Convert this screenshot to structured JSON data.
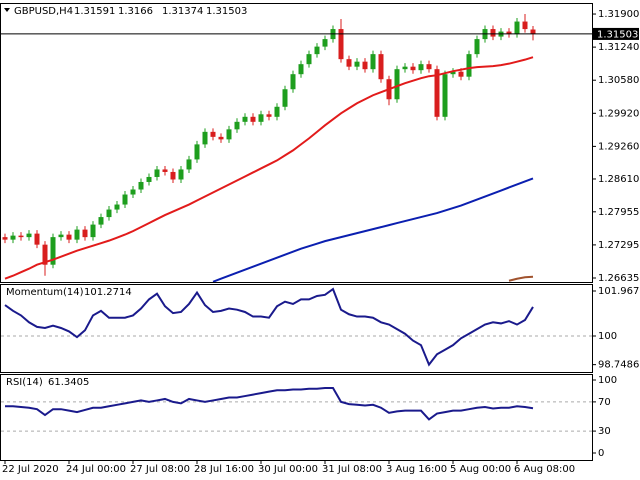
{
  "chart_data": [
    {
      "type": "candlestick",
      "title": "GBPUSD,H4",
      "categories": [
        "22 Jul 2020",
        null,
        null,
        null,
        null,
        null,
        null,
        null,
        "24 Jul 00:00",
        null,
        null,
        null,
        null,
        null,
        null,
        null,
        "27 Jul 08:00",
        null,
        null,
        null,
        null,
        null,
        null,
        null,
        "28 Jul 16:00",
        null,
        null,
        null,
        null,
        null,
        null,
        null,
        "30 Jul 00:00",
        null,
        null,
        null,
        null,
        null,
        null,
        null,
        "31 Jul 08:00",
        null,
        null,
        null,
        null,
        null,
        null,
        null,
        "3 Aug 16:00",
        null,
        null,
        null,
        null,
        null,
        null,
        null,
        "5 Aug 00:00",
        null,
        null,
        null,
        null,
        null,
        null,
        null,
        "6 Aug 08:00",
        null,
        null
      ],
      "open": [
        1.2745,
        1.274,
        1.2748,
        1.2745,
        1.2752,
        1.273,
        1.269,
        1.2745,
        1.275,
        1.274,
        1.276,
        1.2745,
        1.277,
        1.2785,
        1.28,
        1.281,
        1.283,
        1.284,
        1.2855,
        1.2865,
        1.288,
        1.2875,
        1.286,
        1.288,
        1.29,
        1.293,
        1.2955,
        1.2945,
        1.294,
        1.296,
        1.2975,
        1.2985,
        1.2975,
        1.299,
        1.2985,
        1.3005,
        1.304,
        1.307,
        1.309,
        1.311,
        1.3125,
        1.314,
        1.316,
        1.31,
        1.3085,
        1.3095,
        1.308,
        1.311,
        1.306,
        1.302,
        1.308,
        1.3085,
        1.3078,
        1.309,
        1.308,
        1.2985,
        1.307,
        1.3075,
        1.3065,
        1.311,
        1.314,
        1.316,
        1.3145,
        1.3155,
        1.315,
        1.3175,
        1.31591
      ],
      "high": [
        1.2752,
        1.2755,
        1.2755,
        1.2759,
        1.2759,
        1.2737,
        1.2752,
        1.2757,
        1.2757,
        1.2767,
        1.2767,
        1.2777,
        1.2792,
        1.2807,
        1.2817,
        1.2837,
        1.2847,
        1.2862,
        1.2872,
        1.2887,
        1.2887,
        1.2882,
        1.2887,
        1.2907,
        1.2937,
        1.2962,
        1.2962,
        1.2952,
        1.2967,
        1.2982,
        1.2992,
        1.2992,
        1.2997,
        1.2997,
        1.3012,
        1.3047,
        1.3077,
        1.3097,
        1.3117,
        1.3132,
        1.3147,
        1.3167,
        1.318,
        1.3107,
        1.3102,
        1.3102,
        1.3117,
        1.3117,
        1.3067,
        1.3087,
        1.3092,
        1.3092,
        1.3097,
        1.3097,
        1.3087,
        1.3077,
        1.3082,
        1.3082,
        1.3117,
        1.3147,
        1.3167,
        1.3167,
        1.3162,
        1.3162,
        1.3182,
        1.319,
        1.3166
      ],
      "low": [
        1.2733,
        1.2733,
        1.2738,
        1.2738,
        1.2723,
        1.2668,
        1.2683,
        1.2738,
        1.2733,
        1.2733,
        1.2738,
        1.2738,
        1.2763,
        1.2778,
        1.2793,
        1.2803,
        1.2823,
        1.2833,
        1.2848,
        1.2858,
        1.2868,
        1.2853,
        1.2853,
        1.2873,
        1.2893,
        1.2923,
        1.2938,
        1.2933,
        1.2933,
        1.2953,
        1.2968,
        1.2968,
        1.2968,
        1.2978,
        1.2978,
        1.2998,
        1.3033,
        1.3063,
        1.3083,
        1.3103,
        1.3118,
        1.3133,
        1.3093,
        1.3078,
        1.3078,
        1.3073,
        1.3073,
        1.3053,
        1.3008,
        1.3013,
        1.3073,
        1.3071,
        1.3071,
        1.3073,
        1.2978,
        1.2978,
        1.3063,
        1.3058,
        1.3058,
        1.3103,
        1.3133,
        1.3138,
        1.3138,
        1.3143,
        1.3143,
        1.3153,
        1.31374
      ],
      "close": [
        1.274,
        1.2748,
        1.2745,
        1.2752,
        1.273,
        1.269,
        1.2745,
        1.275,
        1.274,
        1.276,
        1.2745,
        1.277,
        1.2785,
        1.28,
        1.281,
        1.283,
        1.284,
        1.2855,
        1.2865,
        1.288,
        1.2875,
        1.286,
        1.288,
        1.29,
        1.293,
        1.2955,
        1.2945,
        1.294,
        1.296,
        1.2975,
        1.2985,
        1.2975,
        1.299,
        1.2985,
        1.3005,
        1.304,
        1.307,
        1.309,
        1.311,
        1.3125,
        1.314,
        1.316,
        1.31,
        1.3085,
        1.3095,
        1.308,
        1.311,
        1.306,
        1.302,
        1.308,
        1.3085,
        1.3078,
        1.309,
        1.308,
        1.2985,
        1.307,
        1.3075,
        1.3065,
        1.311,
        1.314,
        1.316,
        1.3145,
        1.3155,
        1.315,
        1.3175,
        1.316,
        1.31503
      ],
      "up_color": "#1e9e1e",
      "down_color": "#d81e1e",
      "series": [
        {
          "color": "#e21b1b",
          "values": [
            1.2662,
            1.2668,
            1.2675,
            1.2682,
            1.269,
            1.2695,
            1.27,
            1.2706,
            1.2712,
            1.2718,
            1.2723,
            1.2728,
            1.2733,
            1.2738,
            1.2744,
            1.275,
            1.2757,
            1.2765,
            1.2773,
            1.2781,
            1.2789,
            1.2796,
            1.2803,
            1.281,
            1.2818,
            1.2826,
            1.2834,
            1.2842,
            1.285,
            1.2858,
            1.2866,
            1.2874,
            1.2882,
            1.289,
            1.2898,
            1.2908,
            1.2918,
            1.293,
            1.2942,
            1.2955,
            1.2968,
            1.298,
            1.2992,
            1.3002,
            1.3012,
            1.302,
            1.3028,
            1.3034,
            1.304,
            1.3046,
            1.3052,
            1.3057,
            1.3062,
            1.3066,
            1.3068,
            1.3072,
            1.3076,
            1.3079,
            1.3082,
            1.3084,
            1.3085,
            1.3086,
            1.3088,
            1.3091,
            1.3095,
            1.3099,
            1.3104
          ]
        },
        {
          "color": "#0b1fb0",
          "values": [
            null,
            null,
            null,
            null,
            null,
            null,
            null,
            null,
            null,
            null,
            null,
            null,
            null,
            null,
            null,
            null,
            null,
            null,
            null,
            null,
            null,
            null,
            null,
            null,
            null,
            null,
            1.2656,
            1.2662,
            1.2668,
            1.2674,
            1.268,
            1.2686,
            1.2692,
            1.2698,
            1.2704,
            1.271,
            1.2716,
            1.2722,
            1.2727,
            1.2732,
            1.2737,
            1.2741,
            1.2745,
            1.2749,
            1.2753,
            1.2757,
            1.2761,
            1.2765,
            1.2769,
            1.2773,
            1.2777,
            1.2781,
            1.2785,
            1.2789,
            1.2793,
            1.2798,
            1.2803,
            1.2808,
            1.2814,
            1.282,
            1.2826,
            1.2832,
            1.2838,
            1.2844,
            1.285,
            1.2856,
            1.2862
          ]
        },
        {
          "color": "#a0522d",
          "values": [
            null,
            null,
            null,
            null,
            null,
            null,
            null,
            null,
            null,
            null,
            null,
            null,
            null,
            null,
            null,
            null,
            null,
            null,
            null,
            null,
            null,
            null,
            null,
            null,
            null,
            null,
            null,
            null,
            null,
            null,
            null,
            null,
            null,
            null,
            null,
            null,
            null,
            null,
            null,
            null,
            null,
            null,
            null,
            null,
            null,
            null,
            null,
            null,
            null,
            null,
            null,
            null,
            null,
            null,
            null,
            null,
            null,
            null,
            null,
            null,
            null,
            null,
            null,
            1.2658,
            1.2662,
            1.2665,
            1.2666
          ]
        }
      ],
      "ylim": [
        1.26555,
        1.3212
      ],
      "yticks": [
        {
          "value": 1.319,
          "label": "1.31900"
        },
        {
          "value": 1.3124,
          "label": "1.31240"
        },
        {
          "value": 1.3058,
          "label": "1.30580"
        },
        {
          "value": 1.2992,
          "label": "1.29920"
        },
        {
          "value": 1.2926,
          "label": "1.29260"
        },
        {
          "value": 1.2861,
          "label": "1.28610"
        },
        1.27955,
        1.27295,
        1.26635
      ]
    },
    {
      "type": "line",
      "title": "Momentum(14)",
      "series": [
        {
          "color": "#1a1a8c",
          "values": [
            101.35,
            101.1,
            100.9,
            100.6,
            100.4,
            100.35,
            100.45,
            100.35,
            100.2,
            99.95,
            100.25,
            100.9,
            101.1,
            100.8,
            100.8,
            100.8,
            100.9,
            101.2,
            101.6,
            101.85,
            101.3,
            101.0,
            101.05,
            101.4,
            101.9,
            101.35,
            101.05,
            101.1,
            101.2,
            101.15,
            101.05,
            100.85,
            100.85,
            100.8,
            101.3,
            101.5,
            101.4,
            101.6,
            101.6,
            101.75,
            101.8,
            102.05,
            101.15,
            100.95,
            100.85,
            100.85,
            100.8,
            100.6,
            100.5,
            100.3,
            100.1,
            99.8,
            99.6,
            98.75,
            99.2,
            99.4,
            99.6,
            99.9,
            100.1,
            100.3,
            100.5,
            100.6,
            100.55,
            100.65,
            100.5,
            100.7,
            101.2714
          ]
        }
      ],
      "ylim": [
        98.427,
        102.273
      ],
      "yticks": [
        101.967,
        100,
        98.7486
      ],
      "levels": [
        100
      ]
    },
    {
      "type": "line",
      "title": "RSI(14)",
      "series": [
        {
          "color": "#1a1a8c",
          "values": [
            64,
            64,
            63,
            62,
            60,
            52,
            60,
            60,
            58,
            56,
            59,
            62,
            62,
            64,
            66,
            68,
            70,
            72,
            70,
            72,
            74,
            70,
            68,
            74,
            72,
            70,
            72,
            74,
            76,
            76,
            78,
            80,
            82,
            84,
            86,
            86,
            87,
            87,
            88,
            88,
            89,
            89,
            70,
            67,
            66,
            65,
            66,
            62,
            55,
            57,
            58,
            58,
            58,
            46,
            54,
            56,
            58,
            58,
            60,
            62,
            63,
            61,
            62,
            62,
            64,
            63,
            61.3405
          ]
        }
      ],
      "ylim": [
        -9.6,
        108.2
      ],
      "yticks": [
        100,
        70,
        30,
        0
      ],
      "levels": [
        70,
        30
      ]
    }
  ]
}
